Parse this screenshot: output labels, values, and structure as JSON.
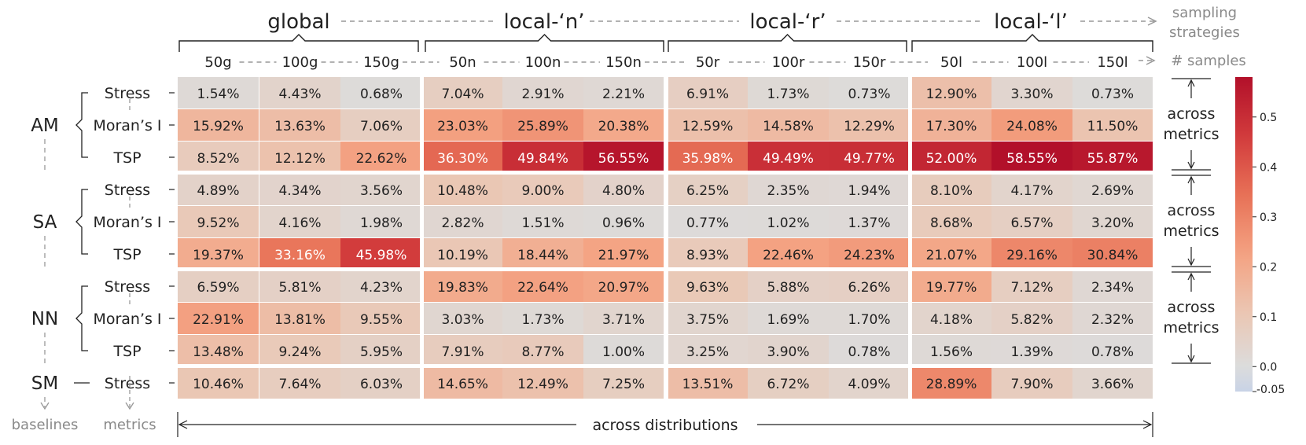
{
  "chart_data": {
    "type": "heatmap",
    "strategies": [
      "global",
      "local-‘n’",
      "local-‘r’",
      "local-‘l’"
    ],
    "strategies_label": "sampling strategies",
    "samples": [
      "50g",
      "100g",
      "150g",
      "50n",
      "100n",
      "150n",
      "50r",
      "100r",
      "150r",
      "50l",
      "100l",
      "150l"
    ],
    "samples_label": "# samples",
    "baselines_label": "baselines",
    "metrics_label": "metrics",
    "across_metrics_label": "across metrics",
    "across_distributions_label": "across distributions",
    "rows": [
      {
        "baseline": "AM",
        "metric": "Stress",
        "values": [
          1.54,
          4.43,
          0.68,
          7.04,
          2.91,
          2.21,
          6.91,
          1.73,
          0.73,
          12.9,
          3.3,
          0.73
        ]
      },
      {
        "baseline": "AM",
        "metric": "Moran’s I",
        "values": [
          15.92,
          13.63,
          7.06,
          23.03,
          25.89,
          20.38,
          12.59,
          14.58,
          12.29,
          17.3,
          24.08,
          11.5
        ]
      },
      {
        "baseline": "AM",
        "metric": "TSP",
        "values": [
          8.52,
          12.12,
          22.62,
          36.3,
          49.84,
          56.55,
          35.98,
          49.49,
          49.77,
          52.0,
          58.55,
          55.87
        ]
      },
      {
        "baseline": "SA",
        "metric": "Stress",
        "values": [
          4.89,
          4.34,
          3.56,
          10.48,
          9.0,
          4.8,
          6.25,
          2.35,
          1.94,
          8.1,
          4.17,
          2.69
        ]
      },
      {
        "baseline": "SA",
        "metric": "Moran’s I",
        "values": [
          9.52,
          4.16,
          1.98,
          2.82,
          1.51,
          0.96,
          0.77,
          1.02,
          1.37,
          8.68,
          6.57,
          3.2
        ]
      },
      {
        "baseline": "SA",
        "metric": "TSP",
        "values": [
          19.37,
          33.16,
          45.98,
          10.19,
          18.44,
          21.97,
          8.93,
          22.46,
          24.23,
          21.07,
          29.16,
          30.84
        ]
      },
      {
        "baseline": "NN",
        "metric": "Stress",
        "values": [
          6.59,
          5.81,
          4.23,
          19.83,
          22.64,
          20.97,
          9.63,
          5.88,
          6.26,
          19.77,
          7.12,
          2.34
        ]
      },
      {
        "baseline": "NN",
        "metric": "Moran’s I",
        "values": [
          22.91,
          13.81,
          9.55,
          3.03,
          1.73,
          3.71,
          3.75,
          1.69,
          1.7,
          4.18,
          5.82,
          2.32
        ]
      },
      {
        "baseline": "NN",
        "metric": "TSP",
        "values": [
          13.48,
          9.24,
          5.95,
          7.91,
          8.77,
          1.0,
          3.25,
          3.9,
          0.78,
          1.56,
          1.39,
          0.78
        ]
      },
      {
        "baseline": "SM",
        "metric": "Stress",
        "values": [
          10.46,
          7.64,
          6.03,
          14.65,
          12.49,
          7.25,
          13.51,
          6.72,
          4.09,
          28.89,
          7.9,
          3.66
        ]
      }
    ],
    "value_suffix": "%",
    "colorbar": {
      "min": -0.05,
      "max": 0.58,
      "ticks": [
        "0.5",
        "0.4",
        "0.3",
        "0.2",
        "0.1",
        "0.0",
        "-0.05"
      ],
      "low_color": "#c8d3e6",
      "mid_color": "#dcdcdc",
      "high_color": "#b2102a"
    }
  }
}
